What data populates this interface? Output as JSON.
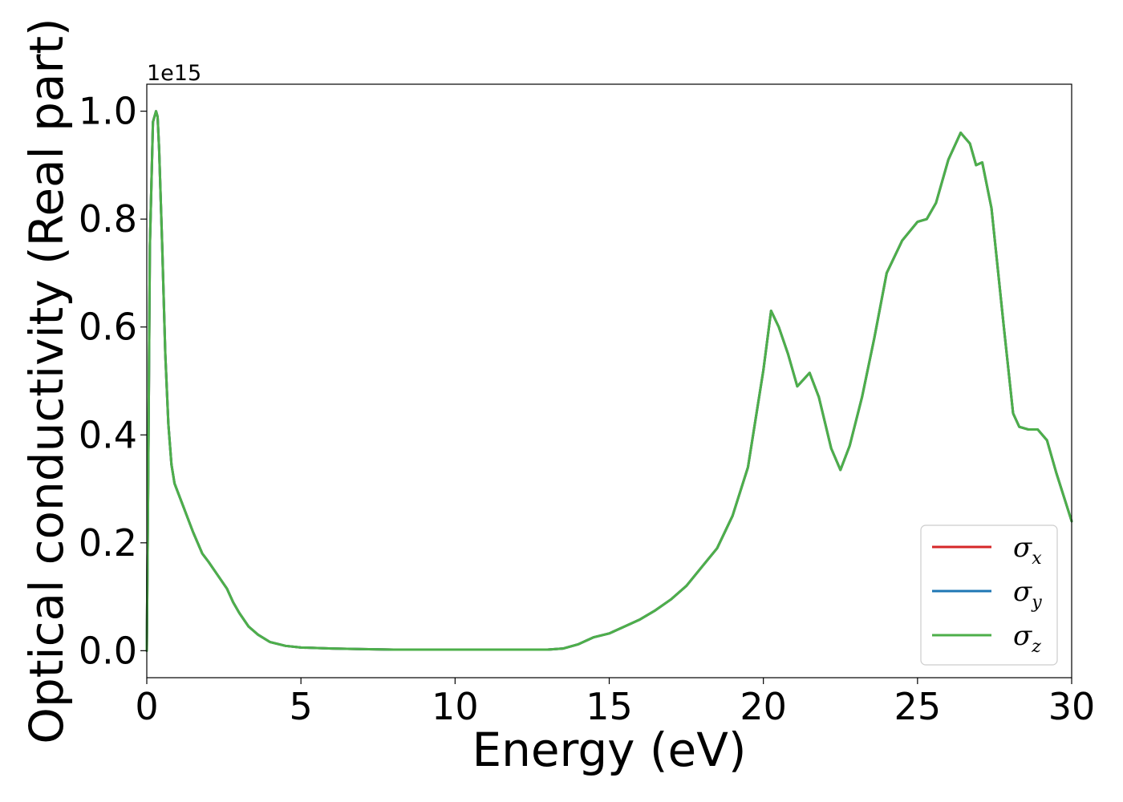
{
  "chart_data": {
    "type": "line",
    "xlabel": "Energy (eV)",
    "ylabel": "Optical conductivity (Real part)",
    "y_offset_label": "1e15",
    "xlim": [
      0,
      30
    ],
    "ylim": [
      -0.05,
      1.05
    ],
    "x_ticks": [
      0,
      5,
      10,
      15,
      20,
      25,
      30
    ],
    "y_ticks": [
      0.0,
      0.2,
      0.4,
      0.6,
      0.8,
      1.0
    ],
    "x_tick_labels": [
      "0",
      "5",
      "10",
      "15",
      "20",
      "25",
      "30"
    ],
    "y_tick_labels": [
      "0.0",
      "0.2",
      "0.4",
      "0.6",
      "0.8",
      "1.0"
    ],
    "grid": false,
    "legend_position": "lower-right",
    "series_style": [
      {
        "symbol": "σ",
        "subscript": "x",
        "color": "#d62728"
      },
      {
        "symbol": "σ",
        "subscript": "y",
        "color": "#1f77b4"
      },
      {
        "symbol": "σ",
        "subscript": "z",
        "color": "#4daf4a"
      }
    ],
    "x": [
      0,
      0.05,
      0.1,
      0.2,
      0.3,
      0.35,
      0.4,
      0.5,
      0.6,
      0.7,
      0.8,
      0.9,
      1.0,
      1.2,
      1.5,
      1.8,
      2.0,
      2.3,
      2.6,
      2.8,
      3.0,
      3.3,
      3.6,
      4.0,
      4.5,
      5.0,
      6.0,
      7.0,
      8.0,
      9.0,
      10.0,
      11.0,
      12.0,
      13.0,
      13.5,
      14.0,
      14.5,
      15.0,
      15.5,
      16.0,
      16.5,
      17.0,
      17.5,
      18.0,
      18.5,
      19.0,
      19.5,
      20.0,
      20.25,
      20.5,
      20.8,
      21.1,
      21.5,
      21.8,
      22.2,
      22.5,
      22.8,
      23.2,
      23.6,
      24.0,
      24.5,
      25.0,
      25.3,
      25.6,
      26.0,
      26.4,
      26.7,
      26.9,
      27.1,
      27.4,
      27.8,
      28.1,
      28.3,
      28.6,
      28.9,
      29.2,
      29.5,
      30.0
    ],
    "values": [
      0.0,
      0.35,
      0.75,
      0.98,
      1.0,
      0.99,
      0.93,
      0.75,
      0.55,
      0.42,
      0.345,
      0.31,
      0.295,
      0.265,
      0.22,
      0.18,
      0.165,
      0.14,
      0.115,
      0.09,
      0.07,
      0.045,
      0.03,
      0.016,
      0.009,
      0.006,
      0.004,
      0.003,
      0.002,
      0.002,
      0.002,
      0.002,
      0.002,
      0.002,
      0.004,
      0.012,
      0.025,
      0.032,
      0.045,
      0.058,
      0.075,
      0.095,
      0.12,
      0.155,
      0.19,
      0.25,
      0.34,
      0.52,
      0.63,
      0.6,
      0.55,
      0.49,
      0.515,
      0.47,
      0.375,
      0.335,
      0.38,
      0.47,
      0.58,
      0.7,
      0.76,
      0.795,
      0.8,
      0.83,
      0.91,
      0.96,
      0.94,
      0.9,
      0.905,
      0.82,
      0.6,
      0.44,
      0.415,
      0.41,
      0.41,
      0.39,
      0.33,
      0.24
    ]
  }
}
